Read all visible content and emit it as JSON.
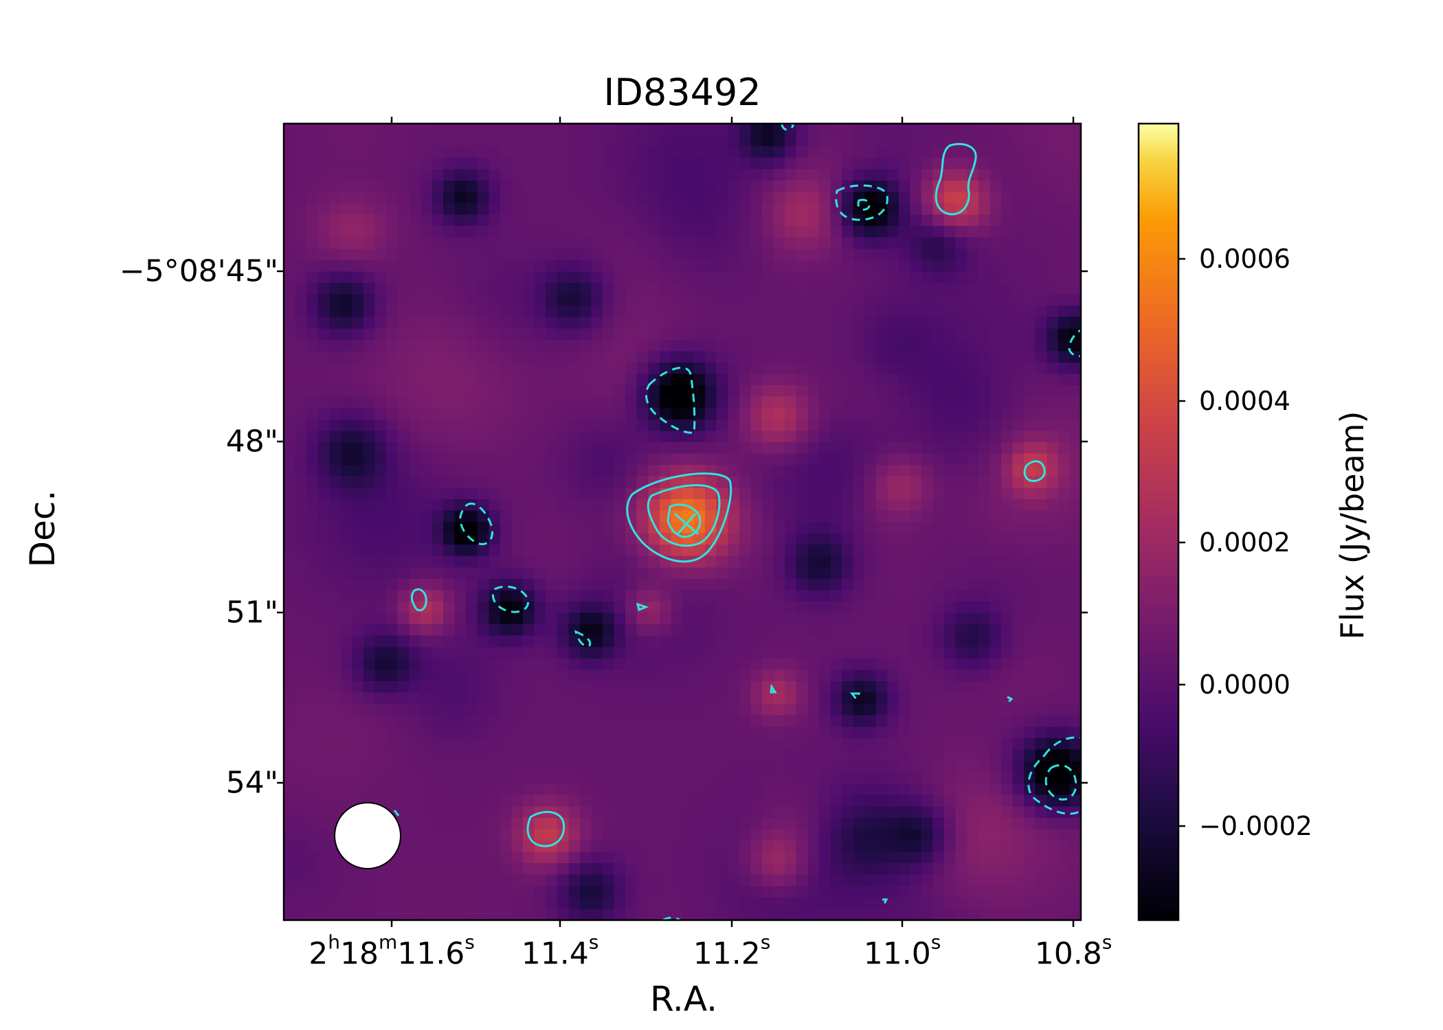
{
  "chart_data": {
    "type": "heatmap",
    "title": "ID83492",
    "xlabel": "R.A.",
    "ylabel": "Dec.",
    "colorbar": {
      "label": "Flux (Jy/beam)",
      "colormap": "inferno",
      "range": [
        -0.00035,
        0.00079
      ],
      "ticks": [
        "−0.0002",
        "0.0000",
        "0.0002",
        "0.0004",
        "0.0006"
      ],
      "tick_values": [
        -0.0002,
        0.0,
        0.0002,
        0.0004,
        0.0006
      ]
    },
    "x_ticks": [
      {
        "prefix": "2",
        "h": "h",
        "m_val": "18",
        "m": "m",
        "s_val": "11.6",
        "s": "s",
        "value": 11.6
      },
      {
        "prefix": "",
        "h": "",
        "m_val": "",
        "m": "",
        "s_val": "11.4",
        "s": "s",
        "value": 11.4
      },
      {
        "prefix": "",
        "h": "",
        "m_val": "",
        "m": "",
        "s_val": "11.2",
        "s": "s",
        "value": 11.2
      },
      {
        "prefix": "",
        "h": "",
        "m_val": "",
        "m": "",
        "s_val": "11.0",
        "s": "s",
        "value": 11.0
      },
      {
        "prefix": "",
        "h": "",
        "m_val": "",
        "m": "",
        "s_val": "10.8",
        "s": "s",
        "value": 10.8
      }
    ],
    "y_ticks": [
      {
        "label": "−5°08'45\"",
        "value": 45
      },
      {
        "label": "48\"",
        "value": 48
      },
      {
        "label": "51\"",
        "value": 51
      },
      {
        "label": "54\"",
        "value": 54
      }
    ],
    "x_range_sec": [
      11.731,
      10.792
    ],
    "y_range_arcsec": [
      42.4,
      56.5
    ],
    "contour_color": "#2ee6e0",
    "beam_color": "#ffffff",
    "sources": [
      {
        "ra": 11.257,
        "dec": 49.4,
        "flux": 0.00055,
        "sigma": 0.55
      },
      {
        "ra": 11.15,
        "dec": 47.6,
        "flux": 0.00028,
        "sigma": 0.45
      },
      {
        "ra": 10.94,
        "dec": 43.8,
        "flux": 0.00036,
        "sigma": 0.4
      },
      {
        "ra": 10.85,
        "dec": 48.5,
        "flux": 0.00024,
        "sigma": 0.32
      },
      {
        "ra": 11.565,
        "dec": 51.0,
        "flux": 0.00026,
        "sigma": 0.32
      },
      {
        "ra": 11.42,
        "dec": 55.0,
        "flux": 0.0003,
        "sigma": 0.4
      },
      {
        "ra": 11.3,
        "dec": 51.0,
        "flux": 0.0002,
        "sigma": 0.3
      },
      {
        "ra": 11.15,
        "dec": 52.5,
        "flux": 0.0002,
        "sigma": 0.32
      },
      {
        "ra": 11.15,
        "dec": 55.5,
        "flux": 0.00025,
        "sigma": 0.4
      },
      {
        "ra": 11.65,
        "dec": 44.2,
        "flux": 0.0002,
        "sigma": 0.45
      },
      {
        "ra": 11.12,
        "dec": 44.0,
        "flux": 0.00018,
        "sigma": 0.5
      },
      {
        "ra": 11.005,
        "dec": 48.8,
        "flux": 0.0002,
        "sigma": 0.4
      },
      {
        "ra": 11.04,
        "dec": 43.9,
        "flux": -0.00042,
        "sigma": 0.38
      },
      {
        "ra": 11.265,
        "dec": 47.2,
        "flux": -0.00048,
        "sigma": 0.45
      },
      {
        "ra": 11.515,
        "dec": 49.6,
        "flux": -0.0004,
        "sigma": 0.32
      },
      {
        "ra": 11.465,
        "dec": 51.0,
        "flux": -0.00036,
        "sigma": 0.35
      },
      {
        "ra": 11.37,
        "dec": 51.4,
        "flux": -0.0003,
        "sigma": 0.35
      },
      {
        "ra": 10.82,
        "dec": 53.9,
        "flux": -0.00046,
        "sigma": 0.45
      },
      {
        "ra": 10.8,
        "dec": 46.2,
        "flux": -0.00036,
        "sigma": 0.35
      },
      {
        "ra": 11.05,
        "dec": 52.6,
        "flux": -0.0003,
        "sigma": 0.35
      },
      {
        "ra": 11.52,
        "dec": 43.7,
        "flux": -0.0003,
        "sigma": 0.35
      },
      {
        "ra": 11.66,
        "dec": 45.6,
        "flux": -0.00028,
        "sigma": 0.4
      },
      {
        "ra": 11.61,
        "dec": 52.0,
        "flux": -0.0003,
        "sigma": 0.4
      },
      {
        "ra": 11.1,
        "dec": 50.2,
        "flux": -0.00024,
        "sigma": 0.4
      },
      {
        "ra": 10.96,
        "dec": 44.5,
        "flux": -0.0002,
        "sigma": 0.4
      },
      {
        "ra": 10.92,
        "dec": 51.5,
        "flux": -0.0002,
        "sigma": 0.4
      },
      {
        "ra": 11.37,
        "dec": 56.0,
        "flux": -0.00024,
        "sigma": 0.4
      },
      {
        "ra": 11.39,
        "dec": 45.5,
        "flux": -0.00024,
        "sigma": 0.4
      },
      {
        "ra": 10.98,
        "dec": 55.0,
        "flux": -0.00022,
        "sigma": 0.4
      },
      {
        "ra": 11.16,
        "dec": 42.6,
        "flux": -0.00028,
        "sigma": 0.35
      },
      {
        "ra": 11.65,
        "dec": 48.2,
        "flux": -0.00018,
        "sigma": 0.45
      }
    ]
  }
}
